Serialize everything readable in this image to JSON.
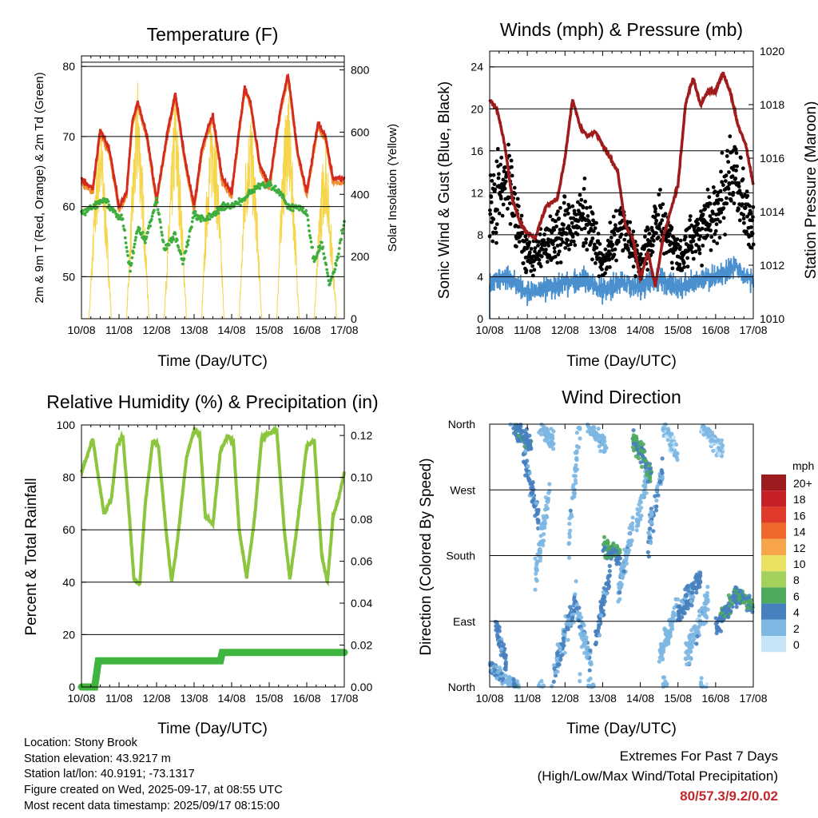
{
  "charts": [
    {
      "title": "Temperature (F)",
      "xlabel": "Time (Day/UTC)",
      "ylabel_left": "2m & 9m T (Red, Orange) & 2m Td (Green)",
      "ylabel_right": "Solar Insolation (Yellow)",
      "x_ticks": [
        "10/08",
        "11/08",
        "12/08",
        "13/08",
        "14/08",
        "15/08",
        "16/08",
        "17/08"
      ],
      "y_left_ticks": [
        "50",
        "60",
        "70",
        "80"
      ],
      "y_right_ticks": [
        "0",
        "200",
        "400",
        "600",
        "800"
      ]
    },
    {
      "title": "Winds (mph) & Pressure (mb)",
      "xlabel": "Time (Day/UTC)",
      "ylabel_left": "Sonic Wind & Gust (Blue, Black)",
      "ylabel_right": "Station Pressure (Maroon)",
      "x_ticks": [
        "10/08",
        "11/08",
        "12/08",
        "13/08",
        "14/08",
        "15/08",
        "16/08",
        "17/08"
      ],
      "y_left_ticks": [
        "0",
        "4",
        "8",
        "12",
        "16",
        "20",
        "24"
      ],
      "y_right_ticks": [
        "1010",
        "1012",
        "1014",
        "1016",
        "1018",
        "1020"
      ]
    },
    {
      "title": "Relative Humidity (%) & Precipitation (in)",
      "xlabel": "Time (Day/UTC)",
      "ylabel_left": "Percent & Total Rainfall",
      "x_ticks": [
        "10/08",
        "11/08",
        "12/08",
        "13/08",
        "14/08",
        "15/08",
        "16/08",
        "17/08"
      ],
      "y_left_ticks": [
        "0",
        "20",
        "40",
        "60",
        "80",
        "100"
      ],
      "y_right_ticks": [
        "0.00",
        "0.02",
        "0.04",
        "0.06",
        "0.08",
        "0.10",
        "0.12"
      ]
    },
    {
      "title": "Wind Direction",
      "xlabel": "Time (Day/UTC)",
      "ylabel_left": "Direction (Colored By Speed)",
      "x_ticks": [
        "10/08",
        "11/08",
        "12/08",
        "13/08",
        "14/08",
        "15/08",
        "16/08",
        "17/08"
      ],
      "y_left_ticks": [
        "North",
        "East",
        "South",
        "West",
        "North"
      ]
    }
  ],
  "legend": {
    "title": "mph",
    "labels": [
      "20+",
      "18",
      "16",
      "14",
      "12",
      "10",
      "8",
      "6",
      "4",
      "2",
      "0"
    ],
    "colors": [
      "#9b1b1e",
      "#c42026",
      "#e03a2a",
      "#f0672a",
      "#f7a54a",
      "#e8e162",
      "#a3d15c",
      "#4daa5d",
      "#4680bf",
      "#7db7e2",
      "#c6e6f8"
    ]
  },
  "station": {
    "location": "Location: Stony Brook",
    "elevation": "Station elevation: 43.9217 m",
    "latlon": "Station lat/lon: 40.9191; -73.1317",
    "created": "Figure created on Wed, 2025-09-17, at 08:55 UTC",
    "recent": "Most recent data timestamp: 2025/09/17 08:15:00"
  },
  "extremes": {
    "line1": "Extremes For Past 7 Days",
    "line2": "(High/Low/Max Wind/Total Precipitation)",
    "values": "80/57.3/9.2/0.02"
  },
  "colors": {
    "temp_2m": "#d42a20",
    "temp_9m": "#f08c2c",
    "dewpoint": "#3fae3f",
    "solar": "#f5d54a",
    "wind": "#4a90cf",
    "gust": "#000000",
    "pressure": "#a01c1c",
    "rh": "#8cc63f",
    "precip": "#3fb53f"
  },
  "chart_data": [
    {
      "type": "line",
      "title": "Temperature (F)",
      "xlabel": "Time (Day/UTC)",
      "ylabel": "2m & 9m T (Red, Orange) & 2m Td (Green)",
      "y2label": "Solar Insolation (Yellow)",
      "xlim_days": [
        0,
        7
      ],
      "ylim": [
        44,
        81.5
      ],
      "y2lim": [
        0,
        845
      ],
      "series": [
        {
          "name": "2m T",
          "x": [
            0,
            0.3,
            0.5,
            0.75,
            1.0,
            1.2,
            1.35,
            1.5,
            1.75,
            2.0,
            2.3,
            2.5,
            2.75,
            3.0,
            3.2,
            3.35,
            3.5,
            3.75,
            4.0,
            4.2,
            4.35,
            4.5,
            4.75,
            5.0,
            5.3,
            5.5,
            5.75,
            6.0,
            6.3,
            6.5,
            6.7,
            7.0
          ],
          "values": [
            64,
            62.5,
            71,
            68,
            60,
            62,
            72,
            75,
            70,
            61,
            71,
            76,
            67,
            60,
            68,
            71,
            73,
            64,
            62,
            71,
            77,
            75,
            66,
            63,
            74,
            79,
            68,
            62,
            72,
            70,
            64,
            64
          ]
        },
        {
          "name": "Td",
          "x": [
            0,
            0.3,
            0.6,
            0.9,
            1.1,
            1.2,
            1.3,
            1.5,
            1.7,
            1.8,
            2.0,
            2.2,
            2.5,
            2.7,
            3.0,
            3.3,
            3.5,
            3.8,
            4.0,
            4.3,
            4.5,
            4.7,
            5.0,
            5.3,
            5.5,
            5.8,
            6.0,
            6.2,
            6.4,
            6.6,
            6.8,
            7.0
          ],
          "values": [
            59,
            60,
            61,
            59,
            58,
            54,
            51,
            57,
            55,
            57,
            61,
            54,
            56,
            52,
            59,
            58,
            59,
            60,
            60,
            61,
            62,
            63,
            63,
            62,
            60,
            60,
            59,
            52,
            55,
            49,
            52,
            58
          ]
        },
        {
          "name": "Solar",
          "axis": "right",
          "x": [
            0.2,
            0.35,
            0.5,
            0.65,
            0.8,
            1.2,
            1.35,
            1.5,
            1.65,
            1.8,
            2.2,
            2.35,
            2.5,
            2.65,
            2.8,
            3.2,
            3.35,
            3.5,
            3.65,
            3.8,
            4.2,
            4.35,
            4.5,
            4.65,
            4.8,
            5.2,
            5.35,
            5.5,
            5.65,
            5.8,
            6.2,
            6.35,
            6.5,
            6.65,
            6.8
          ],
          "values": [
            0,
            400,
            690,
            380,
            0,
            0,
            450,
            790,
            430,
            0,
            0,
            400,
            760,
            420,
            0,
            0,
            480,
            720,
            450,
            0,
            0,
            500,
            690,
            430,
            0,
            0,
            530,
            770,
            440,
            0,
            0,
            400,
            620,
            310,
            0
          ]
        }
      ]
    },
    {
      "type": "line",
      "title": "Winds (mph) & Pressure (mb)",
      "xlabel": "Time (Day/UTC)",
      "ylabel": "Sonic Wind & Gust (Blue, Black)",
      "y2label": "Station Pressure (Maroon)",
      "xlim_days": [
        0,
        7
      ],
      "ylim": [
        0,
        25.5
      ],
      "y2lim": [
        1010,
        1020
      ],
      "series": [
        {
          "name": "Pressure",
          "axis": "right",
          "x": [
            0,
            0.2,
            0.4,
            0.6,
            0.8,
            1.0,
            1.2,
            1.5,
            1.8,
            2.0,
            2.2,
            2.4,
            2.6,
            2.8,
            3.0,
            3.2,
            3.4,
            3.6,
            3.8,
            4.0,
            4.2,
            4.4,
            4.6,
            4.8,
            5.0,
            5.2,
            5.4,
            5.6,
            5.8,
            6.0,
            6.2,
            6.4,
            6.6,
            6.8,
            7.0
          ],
          "values": [
            1018.2,
            1017.8,
            1016.5,
            1014.5,
            1013.6,
            1013.2,
            1013.0,
            1014.2,
            1014.5,
            1016.0,
            1018.2,
            1017.2,
            1016.8,
            1017.0,
            1016.5,
            1016.0,
            1015.5,
            1013.5,
            1013.0,
            1011.5,
            1012.5,
            1011.2,
            1013.0,
            1014.0,
            1015.0,
            1018.0,
            1019.0,
            1018.0,
            1018.5,
            1018.5,
            1019.2,
            1018.4,
            1017.2,
            1016.5,
            1015.0
          ]
        },
        {
          "name": "Wind",
          "x": [
            0,
            0.5,
            1,
            1.5,
            2,
            2.5,
            3,
            3.5,
            4,
            4.5,
            5,
            5.5,
            6,
            6.5,
            7
          ],
          "values": [
            3.5,
            4,
            2.5,
            3,
            3.2,
            3.8,
            2.8,
            3.5,
            3,
            3.8,
            3,
            3.5,
            4,
            5,
            3.5
          ]
        },
        {
          "name": "Gust",
          "x": [
            0,
            0.5,
            1,
            1.5,
            2,
            2.5,
            3,
            3.5,
            4,
            4.5,
            5,
            5.5,
            6,
            6.5,
            7
          ],
          "values": [
            11,
            13,
            6,
            7,
            9,
            10,
            5,
            9,
            5,
            10,
            6,
            8,
            10,
            14,
            8
          ]
        }
      ]
    },
    {
      "type": "line",
      "title": "Relative Humidity (%) & Precipitation (in)",
      "xlabel": "Time (Day/UTC)",
      "ylabel": "Percent & Total Rainfall",
      "xlim_days": [
        0,
        7
      ],
      "ylim": [
        0,
        100
      ],
      "y2lim": [
        0,
        0.125
      ],
      "series": [
        {
          "name": "RH",
          "x": [
            0,
            0.15,
            0.3,
            0.45,
            0.6,
            0.8,
            0.95,
            1.1,
            1.25,
            1.4,
            1.55,
            1.7,
            1.9,
            2.05,
            2.25,
            2.4,
            2.55,
            2.8,
            3.0,
            3.15,
            3.3,
            3.5,
            3.7,
            3.9,
            4.05,
            4.2,
            4.4,
            4.6,
            4.8,
            5.0,
            5.2,
            5.4,
            5.55,
            5.75,
            6.0,
            6.2,
            6.4,
            6.55,
            6.7,
            6.85,
            7.0
          ],
          "values": [
            82,
            88,
            95,
            80,
            66,
            72,
            92,
            96,
            70,
            41,
            39,
            70,
            94,
            92,
            60,
            40,
            55,
            88,
            98,
            96,
            65,
            62,
            90,
            96,
            93,
            60,
            42,
            63,
            95,
            97,
            98,
            60,
            41,
            62,
            92,
            94,
            50,
            40,
            65,
            72,
            82
          ]
        },
        {
          "name": "Precip",
          "axis": "right",
          "x": [
            0,
            0.35,
            0.4,
            0.45,
            3.7,
            3.75,
            7.0
          ],
          "values": [
            0,
            0,
            0.006,
            0.0125,
            0.0125,
            0.0165,
            0.0165
          ]
        }
      ]
    },
    {
      "type": "scatter",
      "title": "Wind Direction",
      "xlabel": "Time (Day/UTC)",
      "ylabel": "Direction (Colored By Speed)",
      "xlim_days": [
        0,
        7
      ],
      "ylim_deg": [
        0,
        360
      ],
      "y_ticks": [
        "North",
        "East",
        "South",
        "West",
        "North"
      ],
      "color_by": "speed (mph)"
    }
  ]
}
